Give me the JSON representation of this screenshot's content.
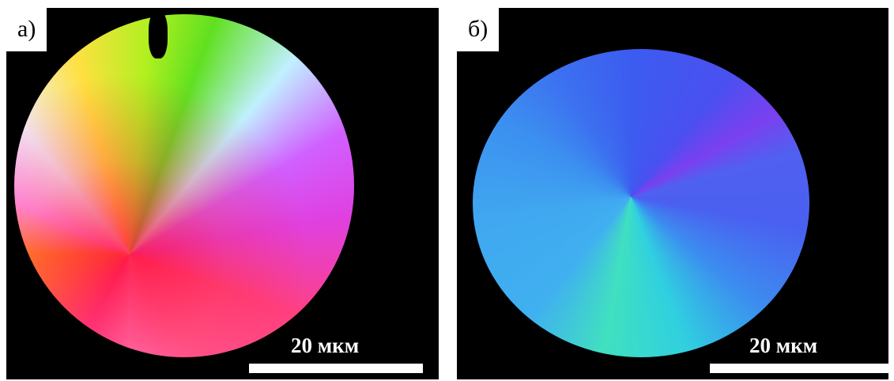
{
  "panels": [
    {
      "label": "а)",
      "scale_bar": "20 мкм"
    },
    {
      "label": "б)",
      "scale_bar": "20 мкм"
    }
  ]
}
